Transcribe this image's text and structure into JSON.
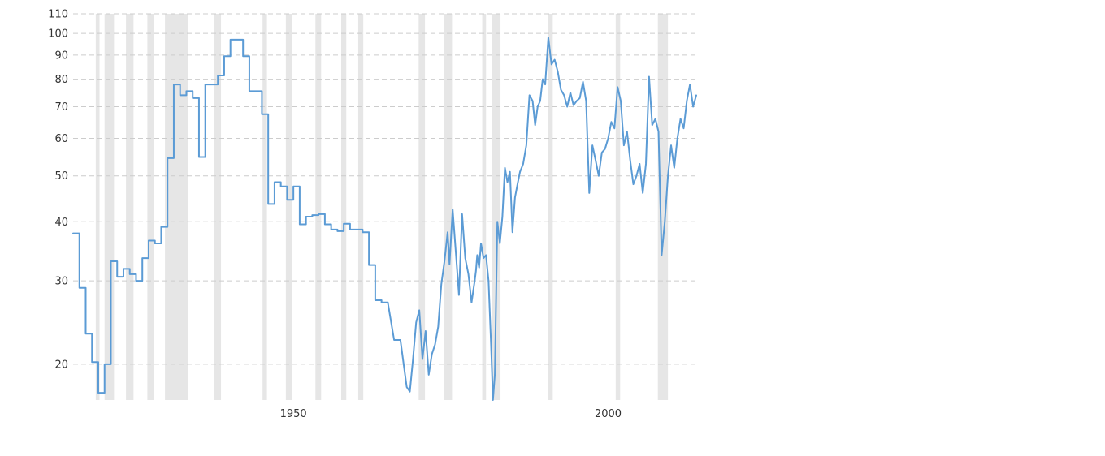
{
  "chart_data": {
    "type": "line",
    "title": "",
    "xlabel": "",
    "ylabel": "",
    "y_scale": "log",
    "xlim": [
      1915,
      2014
    ],
    "ylim": [
      16.8,
      110
    ],
    "x_ticks": [
      {
        "value": 1950,
        "label": "1950"
      },
      {
        "value": 2000,
        "label": "2000"
      }
    ],
    "y_ticks": [
      {
        "value": 110,
        "label": "110"
      },
      {
        "value": 100,
        "label": "100"
      },
      {
        "value": 90,
        "label": "90"
      },
      {
        "value": 80,
        "label": "80"
      },
      {
        "value": 70,
        "label": "70"
      },
      {
        "value": 60,
        "label": "60"
      },
      {
        "value": 50,
        "label": "50"
      },
      {
        "value": 40,
        "label": "40"
      },
      {
        "value": 30,
        "label": "30"
      },
      {
        "value": 20,
        "label": "20"
      }
    ],
    "grid": true,
    "legend": "none",
    "colors": {
      "line": "#5b9bd5",
      "recession": "#e6e6e6",
      "grid": "#cccccc",
      "text": "#333333"
    },
    "recessions": [
      [
        1918.6,
        1919.2
      ],
      [
        1920.0,
        1921.5
      ],
      [
        1923.4,
        1924.6
      ],
      [
        1926.8,
        1927.8
      ],
      [
        1929.6,
        1933.2
      ],
      [
        1937.4,
        1938.5
      ],
      [
        1945.1,
        1945.8
      ],
      [
        1948.8,
        1949.8
      ],
      [
        1953.5,
        1954.4
      ],
      [
        1957.6,
        1958.4
      ],
      [
        1960.3,
        1961.1
      ],
      [
        1969.9,
        1970.9
      ],
      [
        1973.9,
        1975.2
      ],
      [
        1980.0,
        1980.6
      ],
      [
        1981.5,
        1982.9
      ],
      [
        1990.5,
        1991.2
      ],
      [
        2001.2,
        2001.9
      ],
      [
        2007.9,
        2009.5
      ]
    ],
    "series": [
      {
        "step": true,
        "x": [
          1915,
          1916,
          1917,
          1918,
          1919,
          1920,
          1921,
          1922,
          1923,
          1924,
          1925,
          1926,
          1927,
          1928,
          1929,
          1930,
          1931,
          1932,
          1933,
          1934,
          1935,
          1936,
          1937,
          1938,
          1939,
          1940,
          1941,
          1942,
          1943,
          1944,
          1945,
          1946,
          1947,
          1948,
          1949,
          1950,
          1951,
          1952,
          1953,
          1954,
          1955,
          1956,
          1957,
          1958,
          1959,
          1960,
          1961,
          1962,
          1963,
          1964,
          1965
        ],
        "y": [
          37.8,
          29.0,
          23.2,
          20.2,
          17.4,
          20.0,
          33.0,
          30.6,
          31.8,
          31.0,
          30.0,
          33.5,
          36.5,
          36.0,
          39.0,
          54.5,
          78.0,
          74.0,
          75.5,
          73.0,
          54.8,
          78.0,
          78.0,
          81.5,
          89.5,
          97.0,
          97.0,
          89.5,
          75.5,
          75.5,
          67.5,
          43.6,
          48.5,
          47.5,
          44.5,
          47.5,
          39.5,
          41.0,
          41.3,
          41.5,
          39.5,
          38.5,
          38.2,
          39.6,
          38.5,
          38.5,
          38.0,
          32.4,
          27.3,
          27.0,
          27.0
        ]
      },
      {
        "step": false,
        "x": [
          1965,
          1966.0,
          1967.0,
          1968.0,
          1968.5,
          1969.0,
          1969.5,
          1970.0,
          1970.5,
          1971.0,
          1971.5,
          1972.0,
          1972.5,
          1973.0,
          1973.5,
          1974.0,
          1974.5,
          1974.8,
          1975.3,
          1975.8,
          1976.3,
          1976.8,
          1977.3,
          1977.8,
          1978.3,
          1978.8,
          1979.0,
          1979.2,
          1979.5,
          1979.8,
          1980.2,
          1980.6,
          1981.0,
          1981.4,
          1981.7,
          1982.0,
          1982.4,
          1982.8,
          1983.2,
          1983.6,
          1984.0,
          1984.4,
          1984.8,
          1985.2,
          1985.6,
          1986.0,
          1986.5,
          1987.0,
          1987.5,
          1988.0,
          1988.4,
          1988.8,
          1989.2,
          1989.6,
          1990.0,
          1990.5,
          1991.0,
          1991.5,
          1992.0,
          1992.5,
          1993.0,
          1993.5,
          1994.0,
          1994.5,
          1995.0,
          1995.5,
          1996.0,
          1996.5,
          1997.0,
          1997.5,
          1998.0,
          1998.5,
          1999.0,
          1999.5,
          2000.0,
          2000.5,
          2001.0,
          2001.5,
          2002.0,
          2002.5,
          2003.0,
          2003.5,
          2004.0,
          2004.5,
          2005.0,
          2005.5,
          2006.0,
          2006.5,
          2007.0,
          2007.5,
          2008.0,
          2008.5,
          2009.0,
          2009.5,
          2010.0,
          2010.5,
          2011.0,
          2011.5,
          2012.0,
          2012.5,
          2013.0,
          2013.5,
          2014.0
        ],
        "y": [
          27.0,
          22.5,
          22.5,
          17.9,
          17.5,
          20.5,
          24.5,
          26.0,
          20.5,
          23.5,
          19.0,
          21.0,
          22.0,
          24.0,
          29.5,
          33.0,
          38.0,
          32.5,
          42.5,
          34.5,
          28.0,
          41.5,
          33.5,
          31.0,
          27.0,
          30.0,
          31.5,
          34.0,
          32.0,
          36.0,
          33.5,
          34.0,
          30.0,
          22.0,
          10.0,
          19.0,
          40.0,
          36.0,
          41.0,
          52.0,
          48.5,
          51.0,
          38.0,
          45.0,
          48.0,
          51.0,
          53.0,
          58.0,
          74.0,
          72.0,
          64.0,
          70.0,
          72.0,
          80.0,
          78.0,
          98.0,
          86.0,
          88.0,
          83.0,
          76.0,
          74.0,
          70.0,
          75.0,
          70.5,
          72.0,
          73.0,
          79.0,
          72.0,
          46.0,
          58.0,
          54.0,
          50.0,
          56.0,
          57.0,
          60.0,
          65.0,
          63.0,
          77.0,
          72.0,
          58.0,
          62.0,
          54.0,
          48.0,
          50.0,
          53.0,
          46.0,
          53.0,
          81.0,
          64.0,
          66.0,
          62.0,
          34.0,
          40.0,
          50.0,
          58.0,
          52.0,
          60.0,
          66.0,
          63.0,
          72.0,
          78.0,
          70.0,
          74.0
        ]
      }
    ]
  }
}
